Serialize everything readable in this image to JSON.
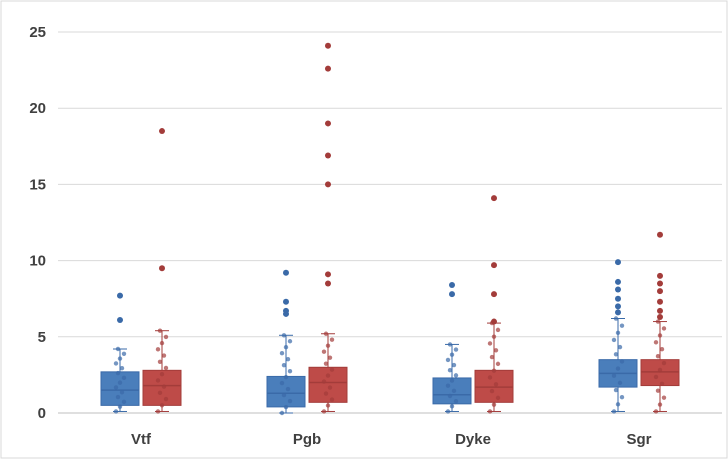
{
  "chart_data": {
    "type": "box",
    "categories": [
      "Vtf",
      "Pgb",
      "Dyke",
      "Sgr"
    ],
    "ylim": [
      0,
      25
    ],
    "yticks": [
      "0",
      "5",
      "10",
      "15",
      "20",
      "25"
    ],
    "grid": true,
    "series": [
      {
        "color": "#4a7ebb",
        "stroke": "#3a6aa8",
        "boxes": [
          {
            "min": 0.1,
            "q1": 0.5,
            "median": 1.5,
            "q3": 2.7,
            "max": 4.2,
            "outliers": [
              6.1,
              7.7
            ]
          },
          {
            "min": 0.0,
            "q1": 0.4,
            "median": 1.3,
            "q3": 2.4,
            "max": 5.1,
            "outliers": [
              6.5,
              6.7,
              7.3,
              9.2
            ]
          },
          {
            "min": 0.1,
            "q1": 0.6,
            "median": 1.2,
            "q3": 2.3,
            "max": 4.5,
            "outliers": [
              7.8,
              8.4
            ]
          },
          {
            "min": 0.1,
            "q1": 1.7,
            "median": 2.6,
            "q3": 3.5,
            "max": 6.2,
            "outliers": [
              6.6,
              7.0,
              7.5,
              8.1,
              8.6,
              9.9
            ]
          }
        ]
      },
      {
        "color": "#be4b48",
        "stroke": "#a33c3a",
        "boxes": [
          {
            "min": 0.1,
            "q1": 0.5,
            "median": 1.8,
            "q3": 2.8,
            "max": 5.4,
            "outliers": [
              9.5,
              18.5
            ]
          },
          {
            "min": 0.1,
            "q1": 0.7,
            "median": 2.0,
            "q3": 3.0,
            "max": 5.2,
            "outliers": [
              8.5,
              9.1,
              15.0,
              16.9,
              19.0,
              22.6,
              24.1
            ]
          },
          {
            "min": 0.1,
            "q1": 0.7,
            "median": 1.7,
            "q3": 2.8,
            "max": 5.9,
            "outliers": [
              6.0,
              7.8,
              9.7,
              14.1
            ]
          },
          {
            "min": 0.1,
            "q1": 1.8,
            "median": 2.7,
            "q3": 3.5,
            "max": 6.0,
            "outliers": [
              6.3,
              6.7,
              7.3,
              8.0,
              8.5,
              9.0,
              11.7
            ]
          }
        ]
      }
    ]
  }
}
